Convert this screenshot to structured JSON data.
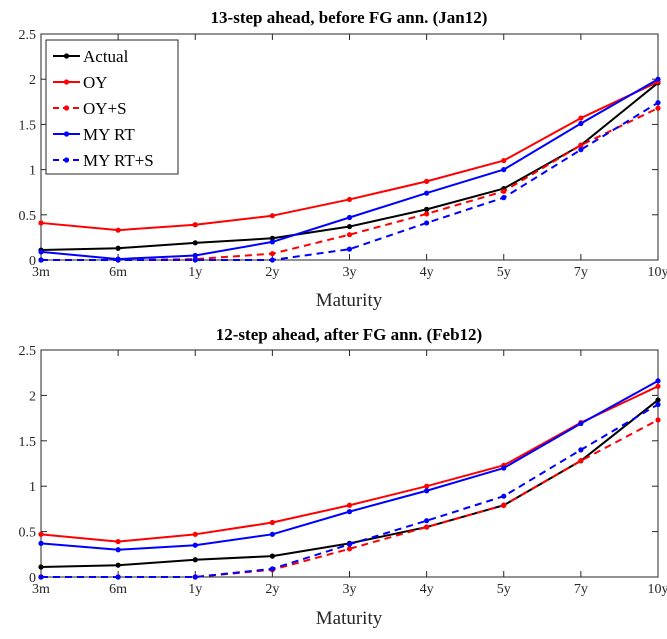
{
  "chart_data": [
    {
      "type": "line",
      "title": "13-step ahead, before FG ann. (Jan12)",
      "xlabel": "Maturity",
      "ylabel": "",
      "categories": [
        "3m",
        "6m",
        "1y",
        "2y",
        "3y",
        "4y",
        "5y",
        "7y",
        "10y"
      ],
      "ylim": [
        0,
        2.5
      ],
      "yticks": [
        "0",
        "0.5",
        "1",
        "1.5",
        "2",
        "2.5"
      ],
      "grid": false,
      "legend_position": "top-left",
      "series": [
        {
          "name": "Actual",
          "color": "#000000",
          "dash": "solid",
          "values": [
            0.11,
            0.13,
            0.19,
            0.24,
            0.37,
            0.56,
            0.79,
            1.27,
            1.96
          ]
        },
        {
          "name": "OY",
          "color": "#ff0000",
          "dash": "solid",
          "values": [
            0.41,
            0.33,
            0.39,
            0.49,
            0.67,
            0.87,
            1.1,
            1.57,
            1.97
          ]
        },
        {
          "name": "OY+S",
          "color": "#ff0000",
          "dash": "dashed",
          "values": [
            0.0,
            0.0,
            0.01,
            0.07,
            0.28,
            0.51,
            0.76,
            1.27,
            1.68
          ]
        },
        {
          "name": "MY RT",
          "color": "#0000ff",
          "dash": "solid",
          "values": [
            0.09,
            0.01,
            0.05,
            0.2,
            0.47,
            0.74,
            1.0,
            1.51,
            2.0
          ]
        },
        {
          "name": "MY RT+S",
          "color": "#0000ff",
          "dash": "dashed",
          "values": [
            0.0,
            0.0,
            0.0,
            0.0,
            0.12,
            0.41,
            0.69,
            1.22,
            1.74
          ]
        }
      ]
    },
    {
      "type": "line",
      "title": "12-step ahead, after FG ann. (Feb12)",
      "xlabel": "Maturity",
      "ylabel": "",
      "categories": [
        "3m",
        "6m",
        "1y",
        "2y",
        "3y",
        "4y",
        "5y",
        "7y",
        "10y"
      ],
      "ylim": [
        0,
        2.5
      ],
      "yticks": [
        "0",
        "0.5",
        "1",
        "1.5",
        "2",
        "2.5"
      ],
      "grid": false,
      "series": [
        {
          "name": "Actual",
          "color": "#000000",
          "dash": "solid",
          "values": [
            0.11,
            0.13,
            0.19,
            0.23,
            0.37,
            0.55,
            0.79,
            1.28,
            1.95
          ]
        },
        {
          "name": "OY",
          "color": "#ff0000",
          "dash": "solid",
          "values": [
            0.47,
            0.39,
            0.47,
            0.6,
            0.79,
            1.0,
            1.23,
            1.7,
            2.1
          ]
        },
        {
          "name": "OY+S",
          "color": "#ff0000",
          "dash": "dashed",
          "values": [
            0.0,
            0.0,
            0.0,
            0.08,
            0.31,
            0.55,
            0.79,
            1.28,
            1.73
          ]
        },
        {
          "name": "MY RT",
          "color": "#0000ff",
          "dash": "solid",
          "values": [
            0.37,
            0.3,
            0.35,
            0.47,
            0.72,
            0.95,
            1.2,
            1.69,
            2.16
          ]
        },
        {
          "name": "MY RT+S",
          "color": "#0000ff",
          "dash": "dashed",
          "values": [
            0.0,
            0.0,
            0.0,
            0.09,
            0.36,
            0.62,
            0.89,
            1.4,
            1.9
          ]
        }
      ]
    }
  ]
}
